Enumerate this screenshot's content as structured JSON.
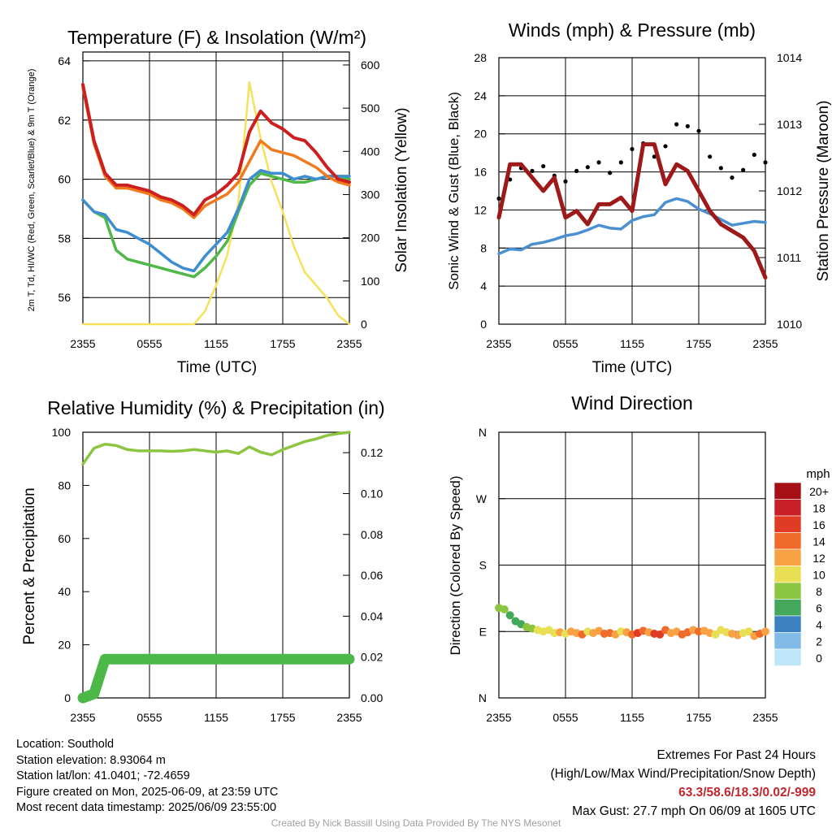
{
  "chart_data": [
    {
      "type": "line",
      "title": "Temperature (F) & Insolation (W/m²)",
      "xlabel": "Time (UTC)",
      "ylabel": "2m T, Td, HI/WC (Red, Green, Scarlet/Blue) & 9m T (Orange)",
      "y2label": "Solar Insolation (Yellow)",
      "x_ticks": [
        "2355",
        "0555",
        "1155",
        "1755",
        "2355"
      ],
      "ylim": [
        55.1,
        64.3
      ],
      "y_ticks": [
        56,
        58,
        60,
        62,
        64
      ],
      "y2lim": [
        0,
        630
      ],
      "y2_ticks": [
        0,
        100,
        200,
        300,
        400,
        500,
        600
      ],
      "x": [
        0,
        1,
        2,
        3,
        4,
        5,
        6,
        7,
        8,
        9,
        10,
        11,
        12,
        13,
        14,
        15,
        16,
        17,
        18,
        19,
        20,
        21,
        22,
        23,
        24
      ],
      "series": [
        {
          "color": "#cc2020",
          "values": [
            63.2,
            61.3,
            60.2,
            59.8,
            59.8,
            59.7,
            59.6,
            59.4,
            59.3,
            59.1,
            58.8,
            59.3,
            59.5,
            59.8,
            60.2,
            61.6,
            62.3,
            61.9,
            61.7,
            61.4,
            61.3,
            60.9,
            60.4,
            60.0,
            59.9
          ]
        },
        {
          "color": "#f07a1c",
          "values": [
            63.1,
            61.2,
            60.1,
            59.7,
            59.7,
            59.6,
            59.5,
            59.3,
            59.2,
            59.0,
            58.7,
            59.1,
            59.3,
            59.5,
            59.9,
            60.6,
            61.3,
            61.0,
            60.9,
            60.8,
            60.6,
            60.4,
            60.1,
            59.9,
            59.8
          ]
        },
        {
          "color": "#3d8ed0",
          "values": [
            59.3,
            58.9,
            58.8,
            58.3,
            58.2,
            58.0,
            57.8,
            57.5,
            57.2,
            57.0,
            56.9,
            57.4,
            57.8,
            58.2,
            59.0,
            60.0,
            60.3,
            60.2,
            60.2,
            60.0,
            60.1,
            60.0,
            60.1,
            60.1,
            60.1
          ]
        },
        {
          "color": "#50b848",
          "values": [
            59.3,
            58.9,
            58.7,
            57.6,
            57.3,
            57.2,
            57.1,
            57.0,
            56.9,
            56.8,
            56.7,
            57.0,
            57.4,
            57.9,
            58.9,
            59.8,
            60.2,
            60.1,
            60.0,
            59.9,
            59.9,
            60.0,
            60.1,
            60.1,
            60.0
          ]
        },
        {
          "color": "#f5e15a",
          "axis": "right",
          "values": [
            0,
            0,
            0,
            0,
            0,
            0,
            0,
            0,
            0,
            0,
            0,
            30,
            90,
            160,
            280,
            560,
            430,
            330,
            260,
            180,
            120,
            90,
            60,
            20,
            0
          ]
        }
      ]
    },
    {
      "type": "line",
      "title": "Winds (mph) & Pressure (mb)",
      "xlabel": "Time (UTC)",
      "ylabel": "Sonic Wind & Gust (Blue, Black)",
      "y2label": "Station Pressure (Maroon)",
      "x_ticks": [
        "2355",
        "0555",
        "1155",
        "1755",
        "2355"
      ],
      "ylim": [
        0,
        28
      ],
      "y_ticks": [
        0,
        4,
        8,
        12,
        16,
        20,
        24,
        28
      ],
      "y2lim": [
        1010,
        1014
      ],
      "y2_ticks": [
        1010,
        1011,
        1012,
        1013,
        1014
      ],
      "x": [
        0,
        1,
        2,
        3,
        4,
        5,
        6,
        7,
        8,
        9,
        10,
        11,
        12,
        13,
        14,
        15,
        16,
        17,
        18,
        19,
        20,
        21,
        22,
        23,
        24
      ],
      "series": [
        {
          "color": "#4a90d0",
          "values": [
            7.4,
            7.9,
            7.8,
            8.4,
            8.6,
            8.9,
            9.3,
            9.5,
            9.9,
            10.4,
            10.1,
            10.0,
            10.9,
            11.3,
            11.5,
            12.8,
            13.2,
            12.9,
            12.1,
            11.6,
            11.0,
            10.4,
            10.6,
            10.8,
            10.7
          ]
        },
        {
          "color": "#000000",
          "values": [
            13.2,
            15.2,
            16.4,
            16.1,
            16.6,
            15.6,
            15.0,
            16.1,
            16.5,
            17.0,
            15.9,
            17.0,
            18.4,
            19.0,
            17.6,
            18.7,
            21.0,
            20.8,
            20.3,
            17.6,
            16.4,
            15.4,
            16.2,
            17.8,
            17.0
          ]
        },
        {
          "color": "#9e1a1a",
          "axis": "right",
          "values": [
            1011.6,
            1012.4,
            1012.4,
            1012.2,
            1012.0,
            1012.2,
            1011.6,
            1011.7,
            1011.5,
            1011.8,
            1011.8,
            1011.9,
            1011.7,
            1012.7,
            1012.7,
            1012.1,
            1012.4,
            1012.3,
            1012.0,
            1011.7,
            1011.5,
            1011.4,
            1011.3,
            1011.1,
            1010.7
          ]
        }
      ]
    },
    {
      "type": "line",
      "title": "Relative Humidity (%) & Precipitation (in)",
      "xlabel": "",
      "ylabel": "Percent & Precipitation",
      "x_ticks": [
        "2355",
        "0555",
        "1155",
        "1755",
        "2355"
      ],
      "ylim": [
        0,
        100
      ],
      "y_ticks": [
        0,
        20,
        40,
        60,
        80,
        100
      ],
      "y2lim": [
        0,
        0.13
      ],
      "y2_ticks": [
        "0.00",
        "0.02",
        "0.04",
        "0.06",
        "0.08",
        "0.10",
        "0.12"
      ],
      "x": [
        0,
        1,
        2,
        3,
        4,
        5,
        6,
        7,
        8,
        9,
        10,
        11,
        12,
        13,
        14,
        15,
        16,
        17,
        18,
        19,
        20,
        21,
        22,
        23,
        24
      ],
      "series": [
        {
          "color": "#8cc641",
          "values": [
            88,
            94,
            95.5,
            95,
            93.5,
            93,
            93,
            93,
            92.8,
            93,
            93.5,
            93,
            92.5,
            93,
            92,
            94.5,
            92.5,
            91.5,
            93.5,
            95,
            96.5,
            97.5,
            98.8,
            99.5,
            100
          ]
        },
        {
          "color": "#4bb848",
          "axis": "right",
          "values": [
            0,
            0.002,
            0.019,
            0.019,
            0.019,
            0.019,
            0.019,
            0.019,
            0.019,
            0.019,
            0.019,
            0.019,
            0.019,
            0.019,
            0.019,
            0.019,
            0.019,
            0.019,
            0.019,
            0.019,
            0.019,
            0.019,
            0.019,
            0.019,
            0.019
          ]
        }
      ]
    },
    {
      "type": "scatter",
      "title": "Wind Direction",
      "xlabel": "",
      "ylabel": "Direction (Colored By Speed)",
      "x_ticks": [
        "2355",
        "0555",
        "1155",
        "1755",
        "2355"
      ],
      "y_ticks": [
        "N",
        "E",
        "S",
        "W",
        "N"
      ],
      "ylim": [
        0,
        360
      ],
      "x": [
        0,
        0.5,
        1,
        1.5,
        2,
        2.5,
        3,
        3.5,
        4,
        4.5,
        5,
        5.5,
        6,
        6.5,
        7,
        7.5,
        8,
        8.5,
        9,
        9.5,
        10,
        10.5,
        11,
        11.5,
        12,
        12.5,
        13,
        13.5,
        14,
        14.5,
        15,
        15.5,
        16,
        16.5,
        17,
        17.5,
        18,
        18.5,
        19,
        19.5,
        20,
        20.5,
        21,
        21.5,
        22,
        22.5,
        23,
        23.5,
        24
      ],
      "direction": [
        122,
        120,
        112,
        104,
        100,
        96,
        94,
        92,
        90,
        92,
        88,
        89,
        87,
        90,
        88,
        86,
        90,
        88,
        91,
        87,
        88,
        86,
        90,
        89,
        86,
        88,
        91,
        89,
        87,
        86,
        92,
        88,
        90,
        86,
        89,
        92,
        90,
        91,
        88,
        86,
        92,
        89,
        87,
        85,
        88,
        90,
        84,
        87,
        90
      ],
      "speed": [
        8,
        8,
        6,
        6,
        6,
        7,
        8,
        9,
        10,
        9,
        10,
        11,
        10,
        11,
        12,
        13,
        10,
        11,
        12,
        14,
        13,
        12,
        10,
        11,
        13,
        15,
        14,
        12,
        15,
        16,
        13,
        12,
        11,
        13,
        14,
        12,
        13,
        12,
        11,
        10,
        10,
        9,
        11,
        12,
        10,
        9,
        12,
        13,
        11
      ],
      "colorbar": {
        "title": "mph",
        "labels": [
          "20+",
          "18",
          "16",
          "14",
          "12",
          "10",
          "8",
          "6",
          "4",
          "2",
          "0"
        ],
        "colors": [
          "#a50f15",
          "#c81e26",
          "#e23b25",
          "#f06a2a",
          "#f9a245",
          "#e8df55",
          "#8cc641",
          "#43a85b",
          "#3c82c3",
          "#82bbe6",
          "#bfe6f8"
        ]
      }
    }
  ],
  "footer": {
    "location": "Location: Southold",
    "elevation": "Station elevation: 8.93064 m",
    "latlon": "Station lat/lon: 41.0401; -72.4659",
    "created": "Figure created on Mon, 2025-06-09, at 23:59 UTC",
    "recent": "Most recent data timestamp: 2025/06/09 23:55:00",
    "extremes_title": "Extremes For Past 24 Hours",
    "extremes_subtitle": "(High/Low/Max Wind/Precipitation/Snow Depth)",
    "extremes_values": "63.3/58.6/18.3/0.02/-999",
    "max_gust": "Max Gust: 27.7 mph On 06/09 at 1605 UTC",
    "credit": "Created By Nick Bassill Using Data Provided By The NYS Mesonet"
  }
}
